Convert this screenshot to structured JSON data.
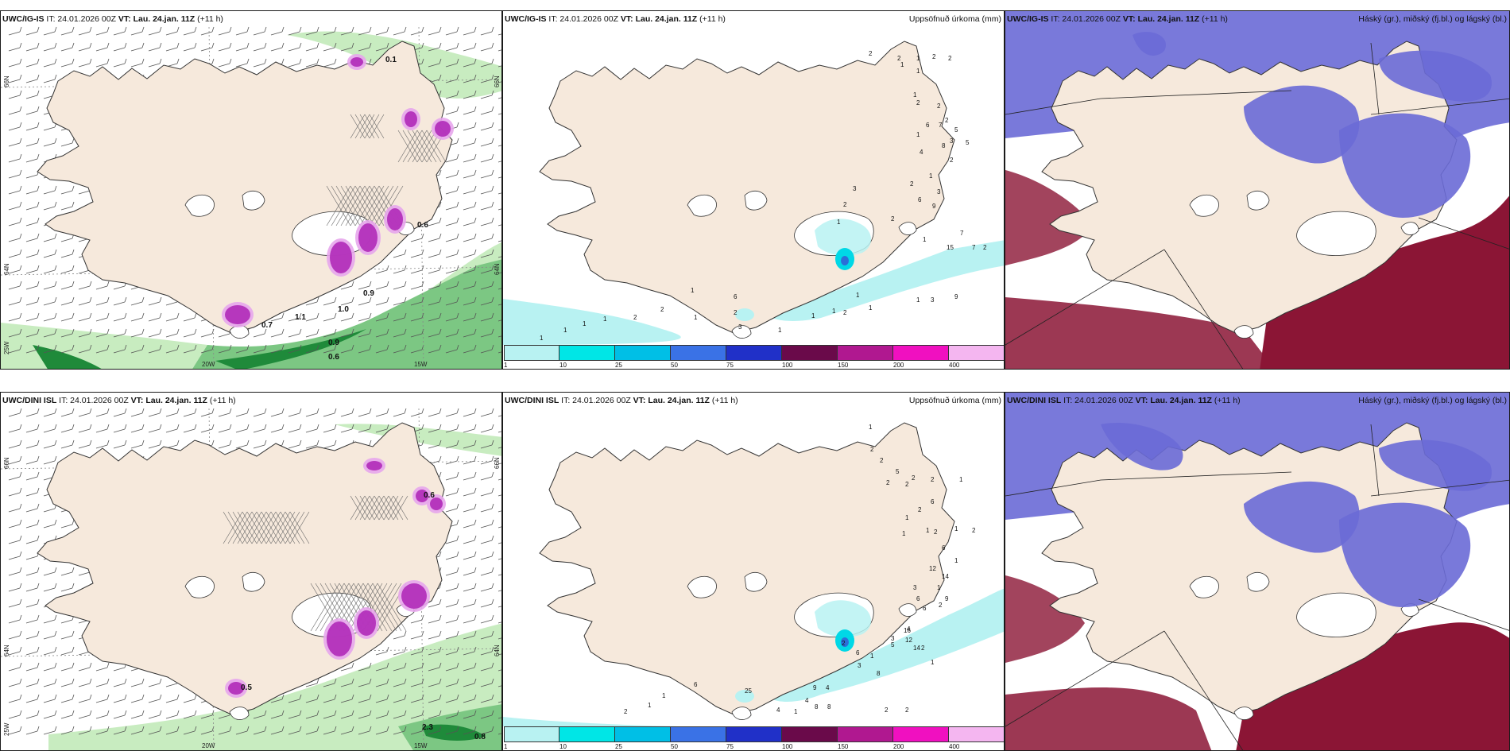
{
  "colors": {
    "land": "#f6e9dc",
    "coast": "#333333",
    "green_light": "#c8ecc0",
    "green_mid": "#7cc783",
    "green_dark": "#1f8a3a",
    "magenta": "#b02ab8",
    "magenta_light": "#e7a6ec",
    "cyan_light": "#b8f2f2",
    "cyan": "#00d8e6",
    "blue_high": "#6a6ad6",
    "red_low": "#8b1535"
  },
  "panels": {
    "top_left": {
      "model": "UWC/IG-IS",
      "it": "IT: 24.01.2026 00Z",
      "vt": "VT: Lau. 24.jan. 11Z",
      "lead": "(+11 h)",
      "lat_labels": [
        "66N",
        "64N"
      ],
      "lon_labels": [
        "20W",
        "15W"
      ],
      "lon_label_left": "25W",
      "precip_labels": [
        "0.1",
        "0.6",
        "0.9",
        "1.0",
        "0.7",
        "1.1",
        "0.9",
        "0.6"
      ]
    },
    "top_mid": {
      "model": "UWC/IG-IS",
      "it": "IT: 24.01.2026 00Z",
      "vt": "VT: Lau. 24.jan. 11Z",
      "lead": "(+11 h)",
      "right_title": "Uppsöfnuð úrkoma (mm)",
      "numbers": [
        "2",
        "2",
        "1",
        "2",
        "2",
        "1",
        "1",
        "2",
        "1",
        "2",
        "2",
        "5",
        "7",
        "6",
        "1",
        "3",
        "5",
        "8",
        "4",
        "2",
        "1",
        "2",
        "3",
        "6",
        "9",
        "3",
        "2",
        "1",
        "2",
        "1",
        "15",
        "7",
        "7",
        "2",
        "1",
        "3",
        "9",
        "1",
        "1",
        "2",
        "6",
        "2",
        "1",
        "2",
        "2",
        "1",
        "1",
        "1",
        "1",
        "1",
        "3",
        "1",
        "1",
        "1"
      ],
      "colorbar": {
        "labels": [
          "1",
          "10",
          "25",
          "50",
          "75",
          "100",
          "150",
          "200",
          "400"
        ],
        "colors": [
          "#b8f2f2",
          "#00e6e6",
          "#00bfe6",
          "#3a72e6",
          "#2030c8",
          "#6a0a4a",
          "#b01890",
          "#f010c0",
          "#f4b6f0"
        ]
      }
    },
    "top_right": {
      "model": "UWC/IG-IS",
      "it": "IT: 24.01.2026 00Z",
      "vt": "VT: Lau. 24.jan. 11Z",
      "lead": "(+11 h)",
      "right_title": "Háský (gr.), miðský (fj.bl.) og lágský (bl.)"
    },
    "bottom_left": {
      "model": "UWC/DINI ISL",
      "it": "IT: 24.01.2026 00Z",
      "vt": "VT: Lau. 24.jan. 11Z",
      "lead": "(+11 h)",
      "lat_labels": [
        "66N",
        "64N"
      ],
      "lon_labels": [
        "20W",
        "15W"
      ],
      "lon_label_left": "25W",
      "precip_labels": [
        "0.6",
        "0.5",
        "2.3",
        "0.8"
      ]
    },
    "bottom_mid": {
      "model": "UWC/DINI ISL",
      "it": "IT: 24.01.2026 00Z",
      "vt": "VT: Lau. 24.jan. 11Z",
      "lead": "(+11 h)",
      "right_title": "Uppsöfnuð úrkoma (mm)",
      "numbers": [
        "1",
        "2",
        "2",
        "5",
        "2",
        "2",
        "1",
        "2",
        "2",
        "6",
        "2",
        "1",
        "1",
        "1",
        "2",
        "1",
        "2",
        "6",
        "1",
        "12",
        "14",
        "1",
        "9",
        "2",
        "3",
        "6",
        "6",
        "4",
        "3",
        "12",
        "14",
        "2",
        "1",
        "16",
        "5",
        "1",
        "3",
        "2",
        "6",
        "8",
        "9",
        "4",
        "4",
        "8",
        "8",
        "2",
        "2",
        "1",
        "25",
        "4",
        "6",
        "1",
        "1",
        "2"
      ],
      "colorbar": {
        "labels": [
          "1",
          "10",
          "25",
          "50",
          "75",
          "100",
          "150",
          "200",
          "400"
        ],
        "colors": [
          "#b8f2f2",
          "#00e6e6",
          "#00bfe6",
          "#3a72e6",
          "#2030c8",
          "#6a0a4a",
          "#b01890",
          "#f010c0",
          "#f4b6f0"
        ]
      }
    },
    "bottom_right": {
      "model": "UWC/DINI ISL",
      "it": "IT: 24.01.2026 00Z",
      "vt": "VT: Lau. 24.jan. 11Z",
      "lead": "(+11 h)",
      "right_title": "Háský (gr.), miðský (fj.bl.) og lágský (bl.)"
    }
  }
}
